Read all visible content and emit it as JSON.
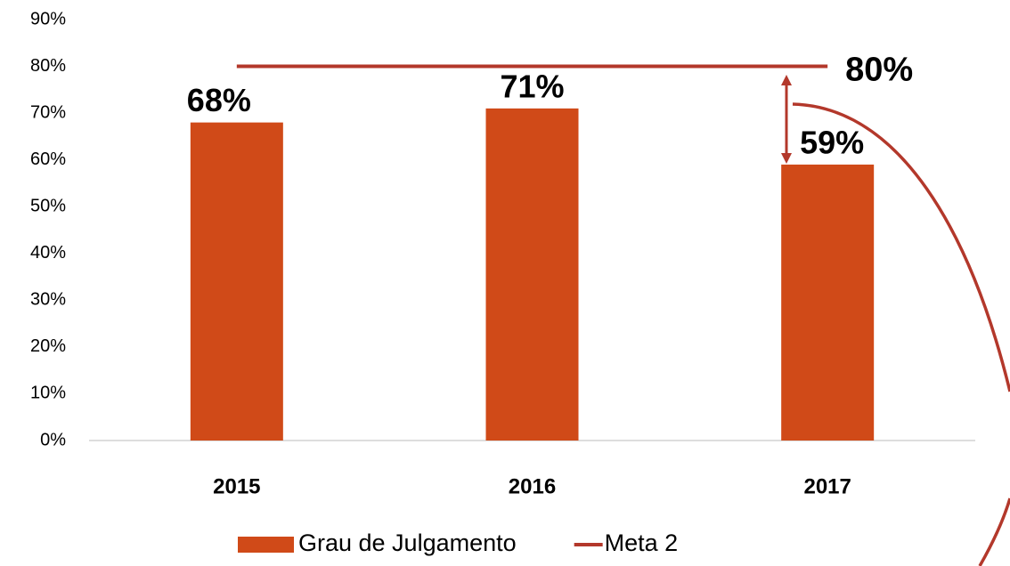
{
  "chart_data": {
    "type": "bar",
    "categories": [
      "2015",
      "2016",
      "2017"
    ],
    "series": [
      {
        "name": "Grau de Julgamento",
        "type": "bar",
        "color": "#d04a18",
        "values": [
          68,
          71,
          59
        ],
        "value_labels": [
          "68%",
          "71%",
          "59%"
        ]
      },
      {
        "name": "Meta 2",
        "type": "line",
        "color": "#b3382b",
        "values": [
          80,
          80,
          80
        ],
        "value_labels": [
          null,
          null,
          "80%"
        ]
      }
    ],
    "ylim": [
      0,
      90
    ],
    "yticks": [
      {
        "value": 0,
        "label": "0%"
      },
      {
        "value": 10,
        "label": "10%"
      },
      {
        "value": 20,
        "label": "20%"
      },
      {
        "value": 30,
        "label": "30%"
      },
      {
        "value": 40,
        "label": "40%"
      },
      {
        "value": 50,
        "label": "50%"
      },
      {
        "value": 60,
        "label": "60%"
      },
      {
        "value": 70,
        "label": "70%"
      },
      {
        "value": 80,
        "label": "80%"
      },
      {
        "value": 90,
        "label": "90%"
      }
    ],
    "grid": false,
    "legend": "bottom"
  }
}
